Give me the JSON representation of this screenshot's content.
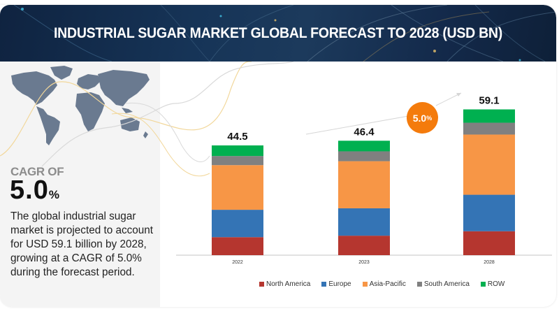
{
  "header": {
    "title": "INDUSTRIAL SUGAR MARKET GLOBAL FORECAST TO 2028 (USD BN)"
  },
  "left_panel": {
    "map_icon": "world-map",
    "cagr_label": "CAGR OF",
    "cagr_value": "5.0",
    "cagr_unit": "%",
    "description": "The global industrial sugar market is projected to account for USD 59.1 billion by 2028, growing at a CAGR of 5.0% during the forecast period."
  },
  "badge": {
    "value": "5.0",
    "unit": "%"
  },
  "colors": {
    "north_america": "#b5362f",
    "europe": "#3474b5",
    "asia_pacific": "#f79646",
    "south_america": "#808080",
    "row": "#00b050",
    "badge": "#f47b0c"
  },
  "chart_data": {
    "type": "bar",
    "stacked": true,
    "title": "INDUSTRIAL SUGAR MARKET GLOBAL FORECAST TO 2028 (USD BN)",
    "xlabel": "",
    "ylabel": "",
    "categories": [
      "2022",
      "2023",
      "2028"
    ],
    "totals": [
      "44.5",
      "46.4",
      "59.1"
    ],
    "total_values": [
      44.5,
      46.4,
      59.1
    ],
    "series": [
      {
        "name": "North America",
        "color": "#b5362f",
        "values": [
          7.3,
          7.9,
          9.7
        ]
      },
      {
        "name": "Europe",
        "color": "#3474b5",
        "values": [
          11.1,
          11.1,
          14.8
        ]
      },
      {
        "name": "Asia-Pacific",
        "color": "#f79646",
        "values": [
          18.1,
          19.1,
          24.4
        ]
      },
      {
        "name": "South America",
        "color": "#808080",
        "values": [
          3.7,
          4.0,
          4.8
        ]
      },
      {
        "name": "ROW",
        "color": "#00b050",
        "values": [
          4.3,
          4.3,
          5.4
        ]
      }
    ],
    "annotation": "5.0%",
    "grid": false,
    "legend_position": "bottom"
  }
}
